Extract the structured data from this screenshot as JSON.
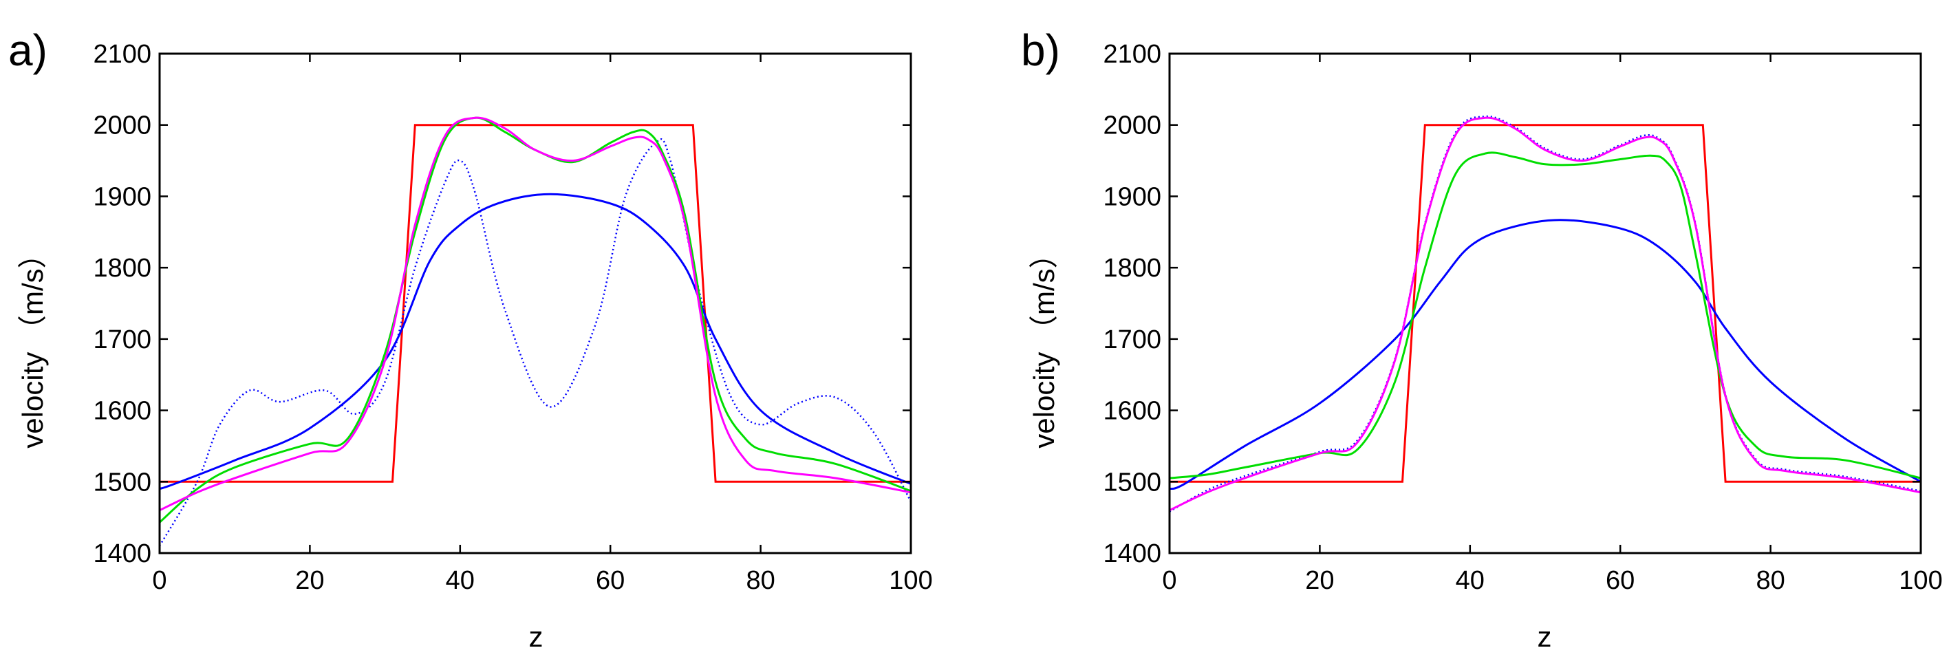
{
  "chart_data": [
    {
      "type": "line",
      "panel_label": "a)",
      "xlabel": "z",
      "ylabel": "velocity （m/s）",
      "xlim": [
        0,
        100
      ],
      "ylim": [
        1400,
        2100
      ],
      "xticks": [
        "0",
        "20",
        "40",
        "60",
        "80",
        "100"
      ],
      "yticks": [
        "1400",
        "1500",
        "1600",
        "1700",
        "1800",
        "1900",
        "2000",
        "2100"
      ],
      "series": [
        {
          "name": "true",
          "color": "#ff0000",
          "style": "solid",
          "x": [
            0,
            31,
            34,
            71,
            74,
            100
          ],
          "values": [
            1500,
            1500,
            2000,
            2000,
            1500,
            1500
          ]
        },
        {
          "name": "smooth",
          "color": "#0000ff",
          "style": "solid",
          "x": [
            0,
            2,
            10,
            20,
            30,
            36,
            40,
            45,
            52,
            60,
            65,
            70,
            74,
            80,
            90,
            100
          ],
          "values": [
            1490,
            1497,
            1530,
            1575,
            1670,
            1810,
            1860,
            1890,
            1903,
            1890,
            1860,
            1800,
            1700,
            1600,
            1540,
            1497
          ]
        },
        {
          "name": "dotted",
          "color": "#0000ff",
          "style": "dotted",
          "x": [
            0,
            5,
            8,
            12,
            16,
            22,
            26,
            30,
            34,
            38,
            40,
            42,
            46,
            52,
            58,
            62,
            66,
            68,
            72,
            76,
            80,
            85,
            90,
            95,
            100
          ],
          "values": [
            1410,
            1500,
            1580,
            1628,
            1612,
            1628,
            1595,
            1640,
            1800,
            1920,
            1950,
            1905,
            1740,
            1605,
            1720,
            1900,
            1975,
            1950,
            1760,
            1620,
            1580,
            1610,
            1618,
            1570,
            1472
          ]
        },
        {
          "name": "green",
          "color": "#00dd00",
          "style": "solid",
          "x": [
            0,
            5,
            10,
            20,
            25,
            30,
            34,
            38,
            42,
            46,
            50,
            55,
            60,
            63,
            65,
            67,
            70,
            74,
            78,
            82,
            90,
            100
          ],
          "values": [
            1443,
            1490,
            1520,
            1553,
            1560,
            1680,
            1850,
            1980,
            2010,
            1990,
            1965,
            1948,
            1975,
            1990,
            1990,
            1960,
            1870,
            1640,
            1560,
            1540,
            1525,
            1487
          ]
        },
        {
          "name": "magenta",
          "color": "#ff00ff",
          "style": "solid",
          "x": [
            0,
            5,
            10,
            20,
            25,
            30,
            34,
            38,
            42,
            46,
            50,
            55,
            60,
            63,
            65,
            67,
            70,
            74,
            78,
            82,
            90,
            100
          ],
          "values": [
            1460,
            1485,
            1505,
            1540,
            1555,
            1670,
            1860,
            1985,
            2010,
            1995,
            1965,
            1950,
            1970,
            1982,
            1980,
            1955,
            1860,
            1620,
            1530,
            1515,
            1505,
            1485
          ]
        }
      ]
    },
    {
      "type": "line",
      "panel_label": "b)",
      "xlabel": "z",
      "ylabel": "velocity （m/s）",
      "xlim": [
        0,
        100
      ],
      "ylim": [
        1400,
        2100
      ],
      "xticks": [
        "0",
        "20",
        "40",
        "60",
        "80",
        "100"
      ],
      "yticks": [
        "1400",
        "1500",
        "1600",
        "1700",
        "1800",
        "1900",
        "2000",
        "2100"
      ],
      "series": [
        {
          "name": "true",
          "color": "#ff0000",
          "style": "solid",
          "x": [
            0,
            31,
            34,
            71,
            74,
            100
          ],
          "values": [
            1500,
            1500,
            2000,
            2000,
            1500,
            1500
          ]
        },
        {
          "name": "smooth",
          "color": "#0000ff",
          "style": "solid",
          "x": [
            0,
            2,
            10,
            20,
            30,
            36,
            40,
            45,
            52,
            60,
            65,
            70,
            74,
            80,
            90,
            100
          ],
          "values": [
            1490,
            1497,
            1550,
            1610,
            1700,
            1780,
            1830,
            1855,
            1867,
            1855,
            1830,
            1780,
            1715,
            1640,
            1560,
            1500
          ]
        },
        {
          "name": "dotted",
          "color": "#0000ff",
          "style": "dotted",
          "x": [
            0,
            5,
            10,
            20,
            25,
            30,
            34,
            38,
            42,
            46,
            50,
            55,
            60,
            63,
            65,
            67,
            70,
            74,
            78,
            82,
            90,
            100
          ],
          "values": [
            1458,
            1488,
            1508,
            1542,
            1558,
            1672,
            1862,
            1988,
            2012,
            1997,
            1967,
            1952,
            1972,
            1985,
            1982,
            1957,
            1862,
            1622,
            1532,
            1517,
            1507,
            1487
          ]
        },
        {
          "name": "green",
          "color": "#00dd00",
          "style": "solid",
          "x": [
            0,
            5,
            10,
            20,
            25,
            30,
            34,
            38,
            42,
            46,
            50,
            55,
            60,
            64,
            66,
            68,
            70,
            74,
            78,
            82,
            90,
            100
          ],
          "values": [
            1505,
            1510,
            1520,
            1540,
            1545,
            1640,
            1800,
            1930,
            1960,
            1955,
            1945,
            1945,
            1952,
            1957,
            1950,
            1915,
            1820,
            1620,
            1550,
            1535,
            1530,
            1505
          ]
        },
        {
          "name": "magenta",
          "color": "#ff00ff",
          "style": "solid",
          "x": [
            0,
            5,
            10,
            20,
            25,
            30,
            34,
            38,
            42,
            46,
            50,
            55,
            60,
            63,
            65,
            67,
            70,
            74,
            78,
            82,
            90,
            100
          ],
          "values": [
            1460,
            1485,
            1505,
            1540,
            1555,
            1670,
            1860,
            1985,
            2010,
            1995,
            1965,
            1950,
            1970,
            1982,
            1980,
            1955,
            1860,
            1620,
            1530,
            1515,
            1505,
            1485
          ]
        }
      ]
    }
  ]
}
